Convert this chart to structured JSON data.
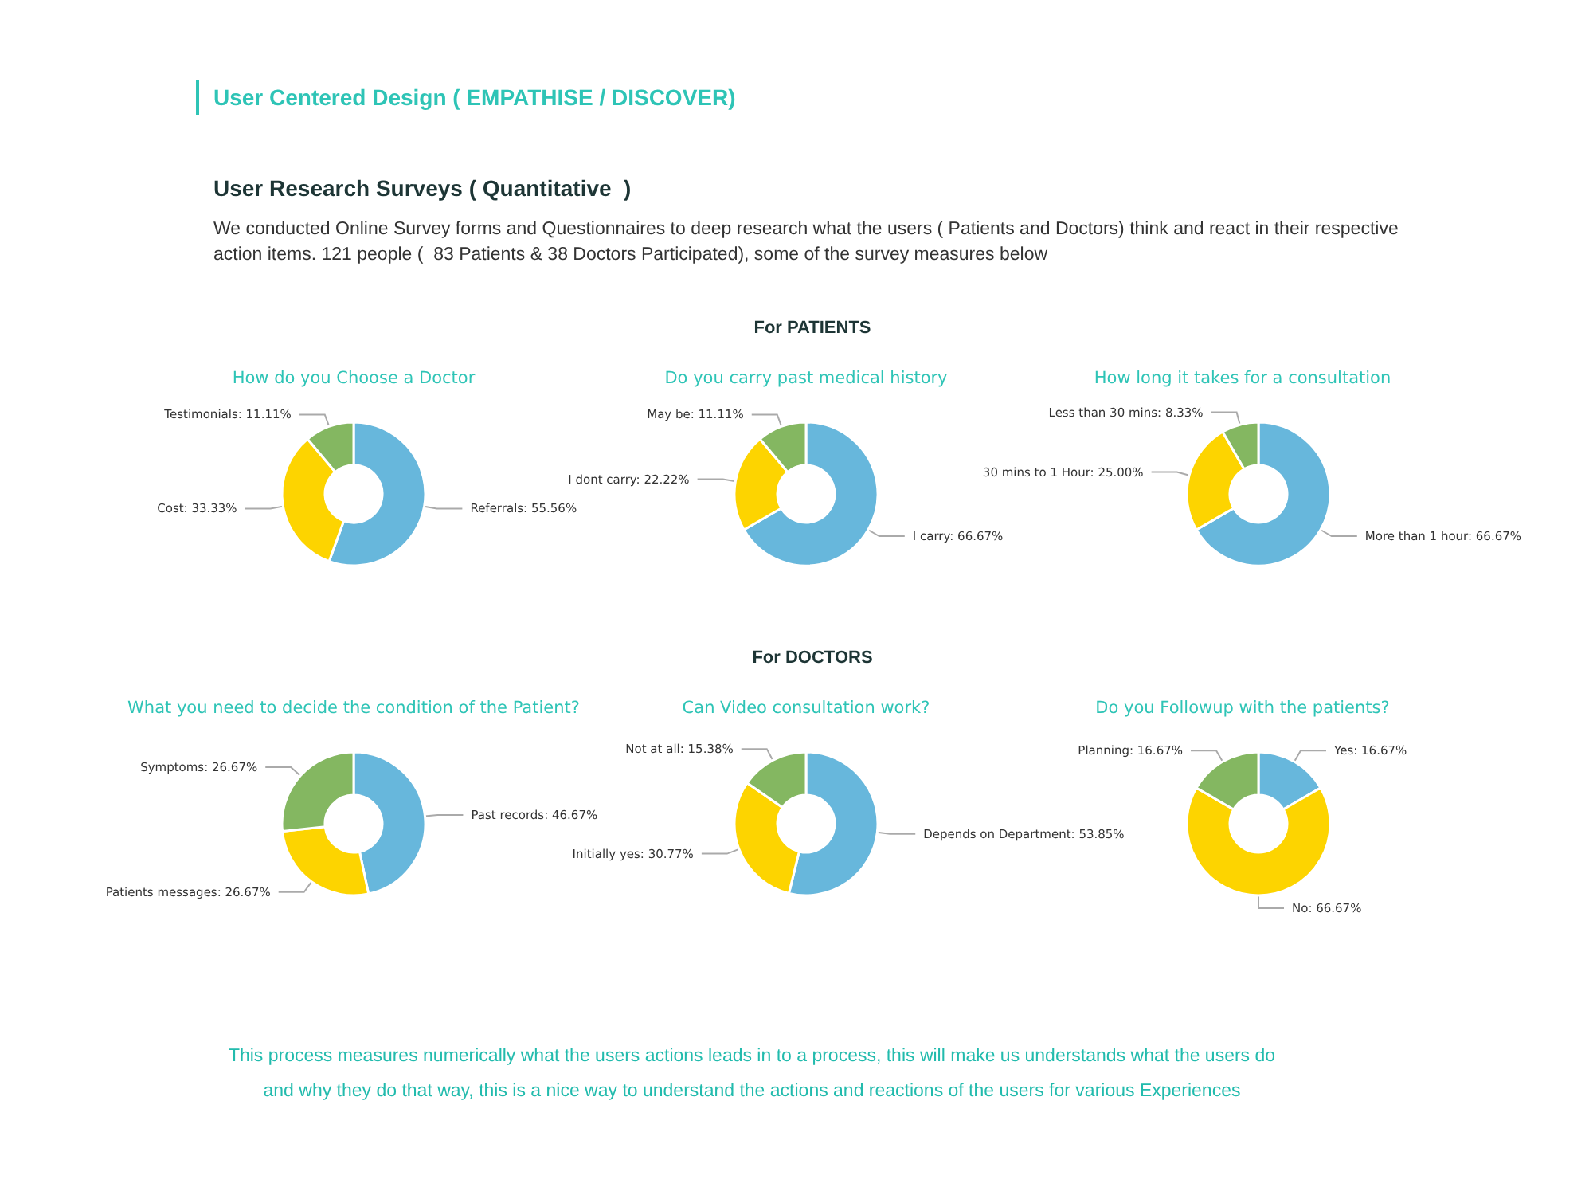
{
  "chart_data": [
    {
      "type": "other",
      "title": "User Centered Design ( EMPATHISE / DISCOVER)",
      "subtitle": "User Research Surveys ( Quantitative  )",
      "annotations": [
        "We conducted Online Survey forms and Questionnaires to deep research what the users ( Patients and Doctors) think and react in their respective action items. 121 people (  83 Patients & 38 Doctors Participated), some of the survey measures below"
      ]
    },
    {
      "type": "other",
      "title": "For PATIENTS"
    },
    {
      "type": "donut",
      "title": "How do you Choose a Doctor",
      "categories": [
        "Referrals",
        "Cost",
        "Testimonials"
      ],
      "values": [
        55.56,
        33.33,
        11.11
      ],
      "colors": [
        "#67b7dc",
        "#fdd400",
        "#84b761"
      ],
      "value_labels": [
        "55.56%",
        "33.33%",
        "11.11%"
      ]
    },
    {
      "type": "donut",
      "title": "Do you carry past medical history",
      "categories": [
        "I carry",
        "I dont carry",
        "May be"
      ],
      "values": [
        66.67,
        22.22,
        11.11
      ],
      "colors": [
        "#67b7dc",
        "#fdd400",
        "#84b761"
      ],
      "value_labels": [
        "66.67%",
        "22.22%",
        "11.11%"
      ]
    },
    {
      "type": "donut",
      "title": "How long it takes for a consultation",
      "categories": [
        "More than 1 hour",
        "30 mins to 1 Hour",
        "Less than 30 mins"
      ],
      "values": [
        66.67,
        25.0,
        8.33
      ],
      "colors": [
        "#67b7dc",
        "#fdd400",
        "#84b761"
      ],
      "value_labels": [
        "66.67%",
        "25.00%",
        "8.33%"
      ]
    },
    {
      "type": "other",
      "title": "For DOCTORS"
    },
    {
      "type": "donut",
      "title": "What you need to decide the condition of the Patient?",
      "categories": [
        "Past records",
        "Patients messages",
        "Symptoms"
      ],
      "values": [
        46.67,
        26.67,
        26.67
      ],
      "colors": [
        "#67b7dc",
        "#fdd400",
        "#84b761"
      ],
      "value_labels": [
        "46.67%",
        "26.67%",
        "26.67%"
      ]
    },
    {
      "type": "donut",
      "title": "Can Video consultation work?",
      "categories": [
        "Depends on Department",
        "Initially yes",
        "Not at all"
      ],
      "values": [
        53.85,
        30.77,
        15.38
      ],
      "colors": [
        "#67b7dc",
        "#fdd400",
        "#84b761"
      ],
      "value_labels": [
        "53.85%",
        "30.77%",
        "15.38%"
      ]
    },
    {
      "type": "donut",
      "title": "Do you Followup with the patients?",
      "categories": [
        "Yes",
        "No",
        "Planning"
      ],
      "values": [
        16.67,
        66.67,
        16.67
      ],
      "colors": [
        "#67b7dc",
        "#fdd400",
        "#84b761"
      ],
      "value_labels": [
        "16.67%",
        "66.67%",
        "16.67%"
      ]
    },
    {
      "type": "other",
      "annotations": [
        "This process measures numerically what the users actions leads in to a process, this will make us understands what the users do and why they do that way, this is a nice way to understand the actions and reactions of the users for various Experiences"
      ]
    }
  ]
}
